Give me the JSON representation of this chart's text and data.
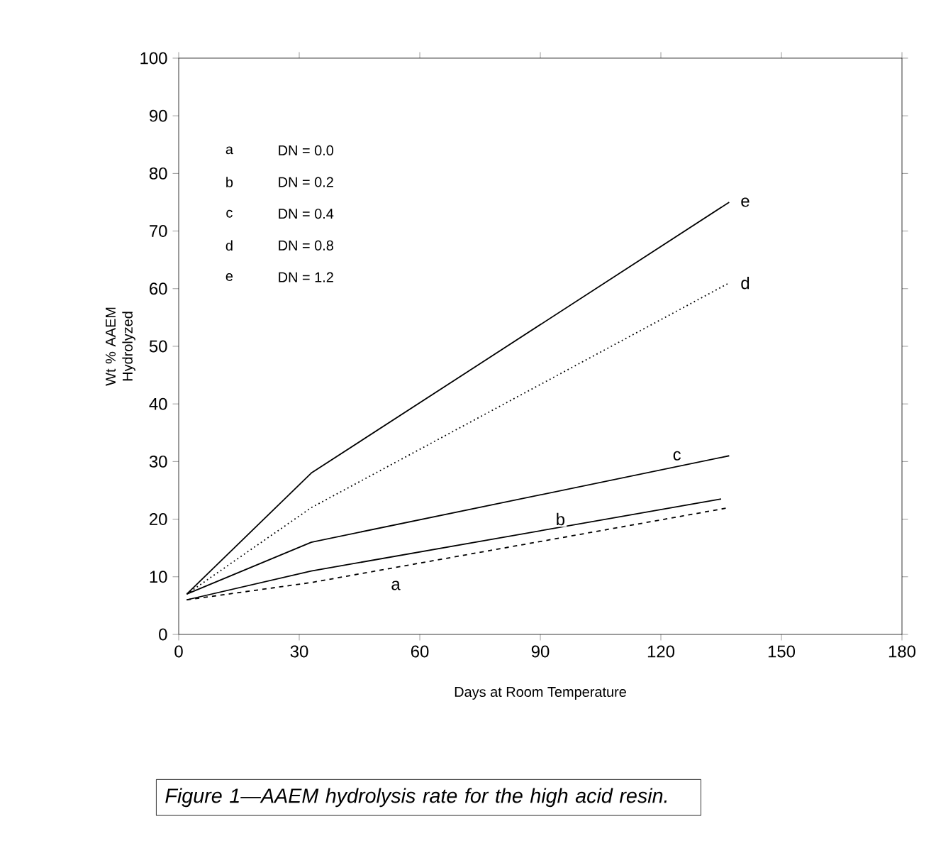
{
  "chart_data": {
    "type": "line",
    "xlabel": "Days at Room Temperature",
    "ylabel": "Wt % AAEM Hydrolyzed",
    "xlim": [
      0,
      180
    ],
    "ylim": [
      0,
      100
    ],
    "xticks": [
      0,
      30,
      60,
      90,
      120,
      150,
      180
    ],
    "yticks": [
      0,
      10,
      20,
      30,
      40,
      50,
      60,
      70,
      80,
      90,
      100
    ],
    "grid": false,
    "series": [
      {
        "color": "#000000",
        "line_style": "dashed",
        "x": [
          2,
          33,
          137
        ],
        "values": [
          6,
          9,
          22
        ]
      },
      {
        "color": "#000000",
        "line_style": "solid",
        "x": [
          2,
          33,
          135
        ],
        "values": [
          6,
          11,
          23.5
        ]
      },
      {
        "color": "#000000",
        "line_style": "solid",
        "x": [
          2,
          33,
          137
        ],
        "values": [
          7,
          16,
          31
        ]
      },
      {
        "color": "#000000",
        "line_style": "dotted",
        "x": [
          2,
          33,
          137
        ],
        "values": [
          7,
          22,
          61
        ]
      },
      {
        "color": "#000000",
        "line_style": "solid",
        "x": [
          2,
          33,
          137
        ],
        "values": [
          7,
          28,
          75
        ]
      }
    ],
    "annotations": [
      {
        "text": "a",
        "x": 54,
        "y": 8.5
      },
      {
        "text": "b",
        "x": 95,
        "y": 20
      },
      {
        "text": "c",
        "x": 124,
        "y": 31
      },
      {
        "text": "d",
        "x": 141,
        "y": 61
      },
      {
        "text": "e",
        "x": 141,
        "y": 75
      },
      "a",
      "b",
      "c",
      "d",
      "e",
      "DN = 0.0",
      "DN = 0.2",
      "DN = 0.4",
      "DN = 0.8",
      "DN = 1.2",
      "Figure 1—AAEM hydrolysis rate for the high acid resin."
    ]
  }
}
